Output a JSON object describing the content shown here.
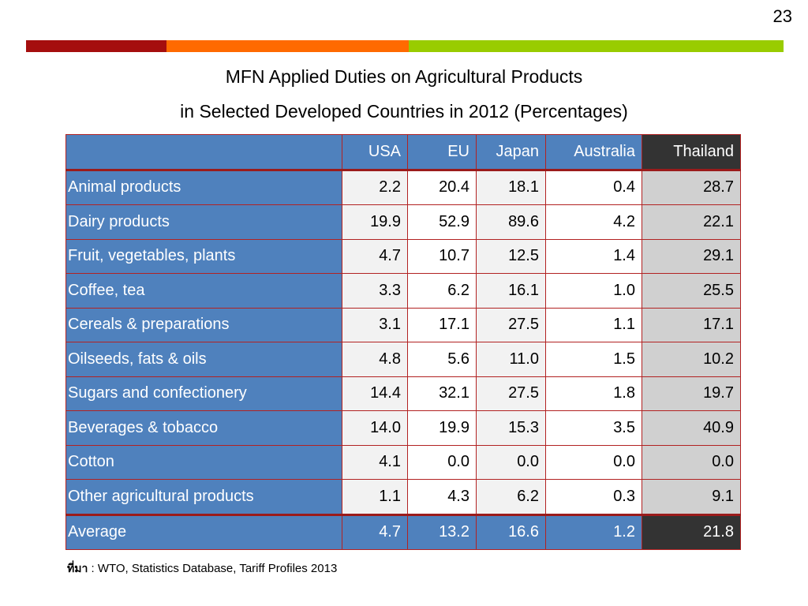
{
  "page_number": "23",
  "color_bar": [
    "#a50e0e",
    "#ff6a00",
    "#99cc00"
  ],
  "title": {
    "line1": "MFN Applied Duties on Agricultural Products",
    "line2": "in Selected Developed Countries in 2012 (Percentages)"
  },
  "table": {
    "headers": [
      "",
      "USA",
      "EU",
      "Japan",
      "Australia",
      "Thailand"
    ],
    "rows": [
      [
        "Animal products",
        "2.2",
        "20.4",
        "18.1",
        "0.4",
        "28.7"
      ],
      [
        "Dairy products",
        "19.9",
        "52.9",
        "89.6",
        "4.2",
        "22.1"
      ],
      [
        "Fruit, vegetables, plants",
        "4.7",
        "10.7",
        "12.5",
        "1.4",
        "29.1"
      ],
      [
        "Coffee, tea",
        "3.3",
        "6.2",
        "16.1",
        "1.0",
        "25.5"
      ],
      [
        "Cereals & preparations",
        "3.1",
        "17.1",
        "27.5",
        "1.1",
        "17.1"
      ],
      [
        "Oilseeds, fats & oils",
        "4.8",
        "5.6",
        "11.0",
        "1.5",
        "10.2"
      ],
      [
        "Sugars and confectionery",
        "14.4",
        "32.1",
        "27.5",
        "1.8",
        "19.7"
      ],
      [
        "Beverages & tobacco",
        "14.0",
        "19.9",
        "15.3",
        "3.5",
        "40.9"
      ],
      [
        "Cotton",
        "4.1",
        "0.0",
        "0.0",
        "0.0",
        "0.0"
      ],
      [
        "Other agricultural products",
        "1.1",
        "4.3",
        "6.2",
        "0.3",
        "9.1"
      ]
    ],
    "average": [
      "Average",
      "4.7",
      "13.2",
      "16.6",
      "1.2",
      "21.8"
    ]
  },
  "source": {
    "label": "ที่มา",
    "text": " : WTO, Statistics Database, Tariff Profiles 2013"
  }
}
